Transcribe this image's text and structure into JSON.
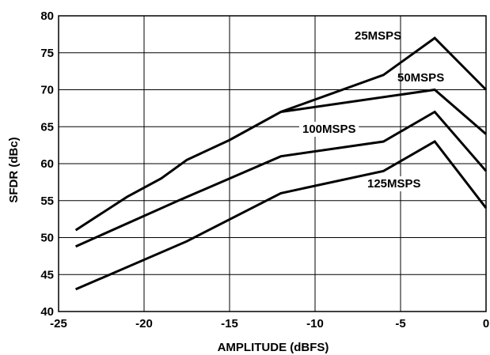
{
  "chart_data": {
    "type": "line",
    "title": "",
    "xlabel": "AMPLITUDE (dBFS)",
    "ylabel": "SFDR (dBc)",
    "xlim": [
      -25,
      0
    ],
    "ylim": [
      40,
      80
    ],
    "xticks": [
      -25,
      -20,
      -15,
      -10,
      -5,
      0
    ],
    "yticks": [
      40,
      45,
      50,
      55,
      60,
      65,
      70,
      75,
      80
    ],
    "grid": true,
    "legend": "inline labels",
    "line_color": "#000000",
    "series": [
      {
        "name": "25MSPS",
        "x": [
          -24,
          -21,
          -19,
          -17.5,
          -15,
          -12,
          -6,
          -3,
          0
        ],
        "y": [
          51,
          55.5,
          58,
          60.5,
          63.2,
          67,
          72,
          77,
          70
        ]
      },
      {
        "name": "50MSPS",
        "x": [
          -12,
          -3,
          0
        ],
        "y": [
          67,
          70,
          64
        ]
      },
      {
        "name": "100MSPS",
        "x": [
          -24,
          -18,
          -12,
          -6,
          -3,
          0
        ],
        "y": [
          48.8,
          55,
          61,
          63,
          67,
          59
        ]
      },
      {
        "name": "125MSPS",
        "x": [
          -24,
          -17.5,
          -12,
          -6,
          -3,
          0
        ],
        "y": [
          43,
          49.5,
          56,
          59,
          63,
          54
        ]
      }
    ]
  }
}
